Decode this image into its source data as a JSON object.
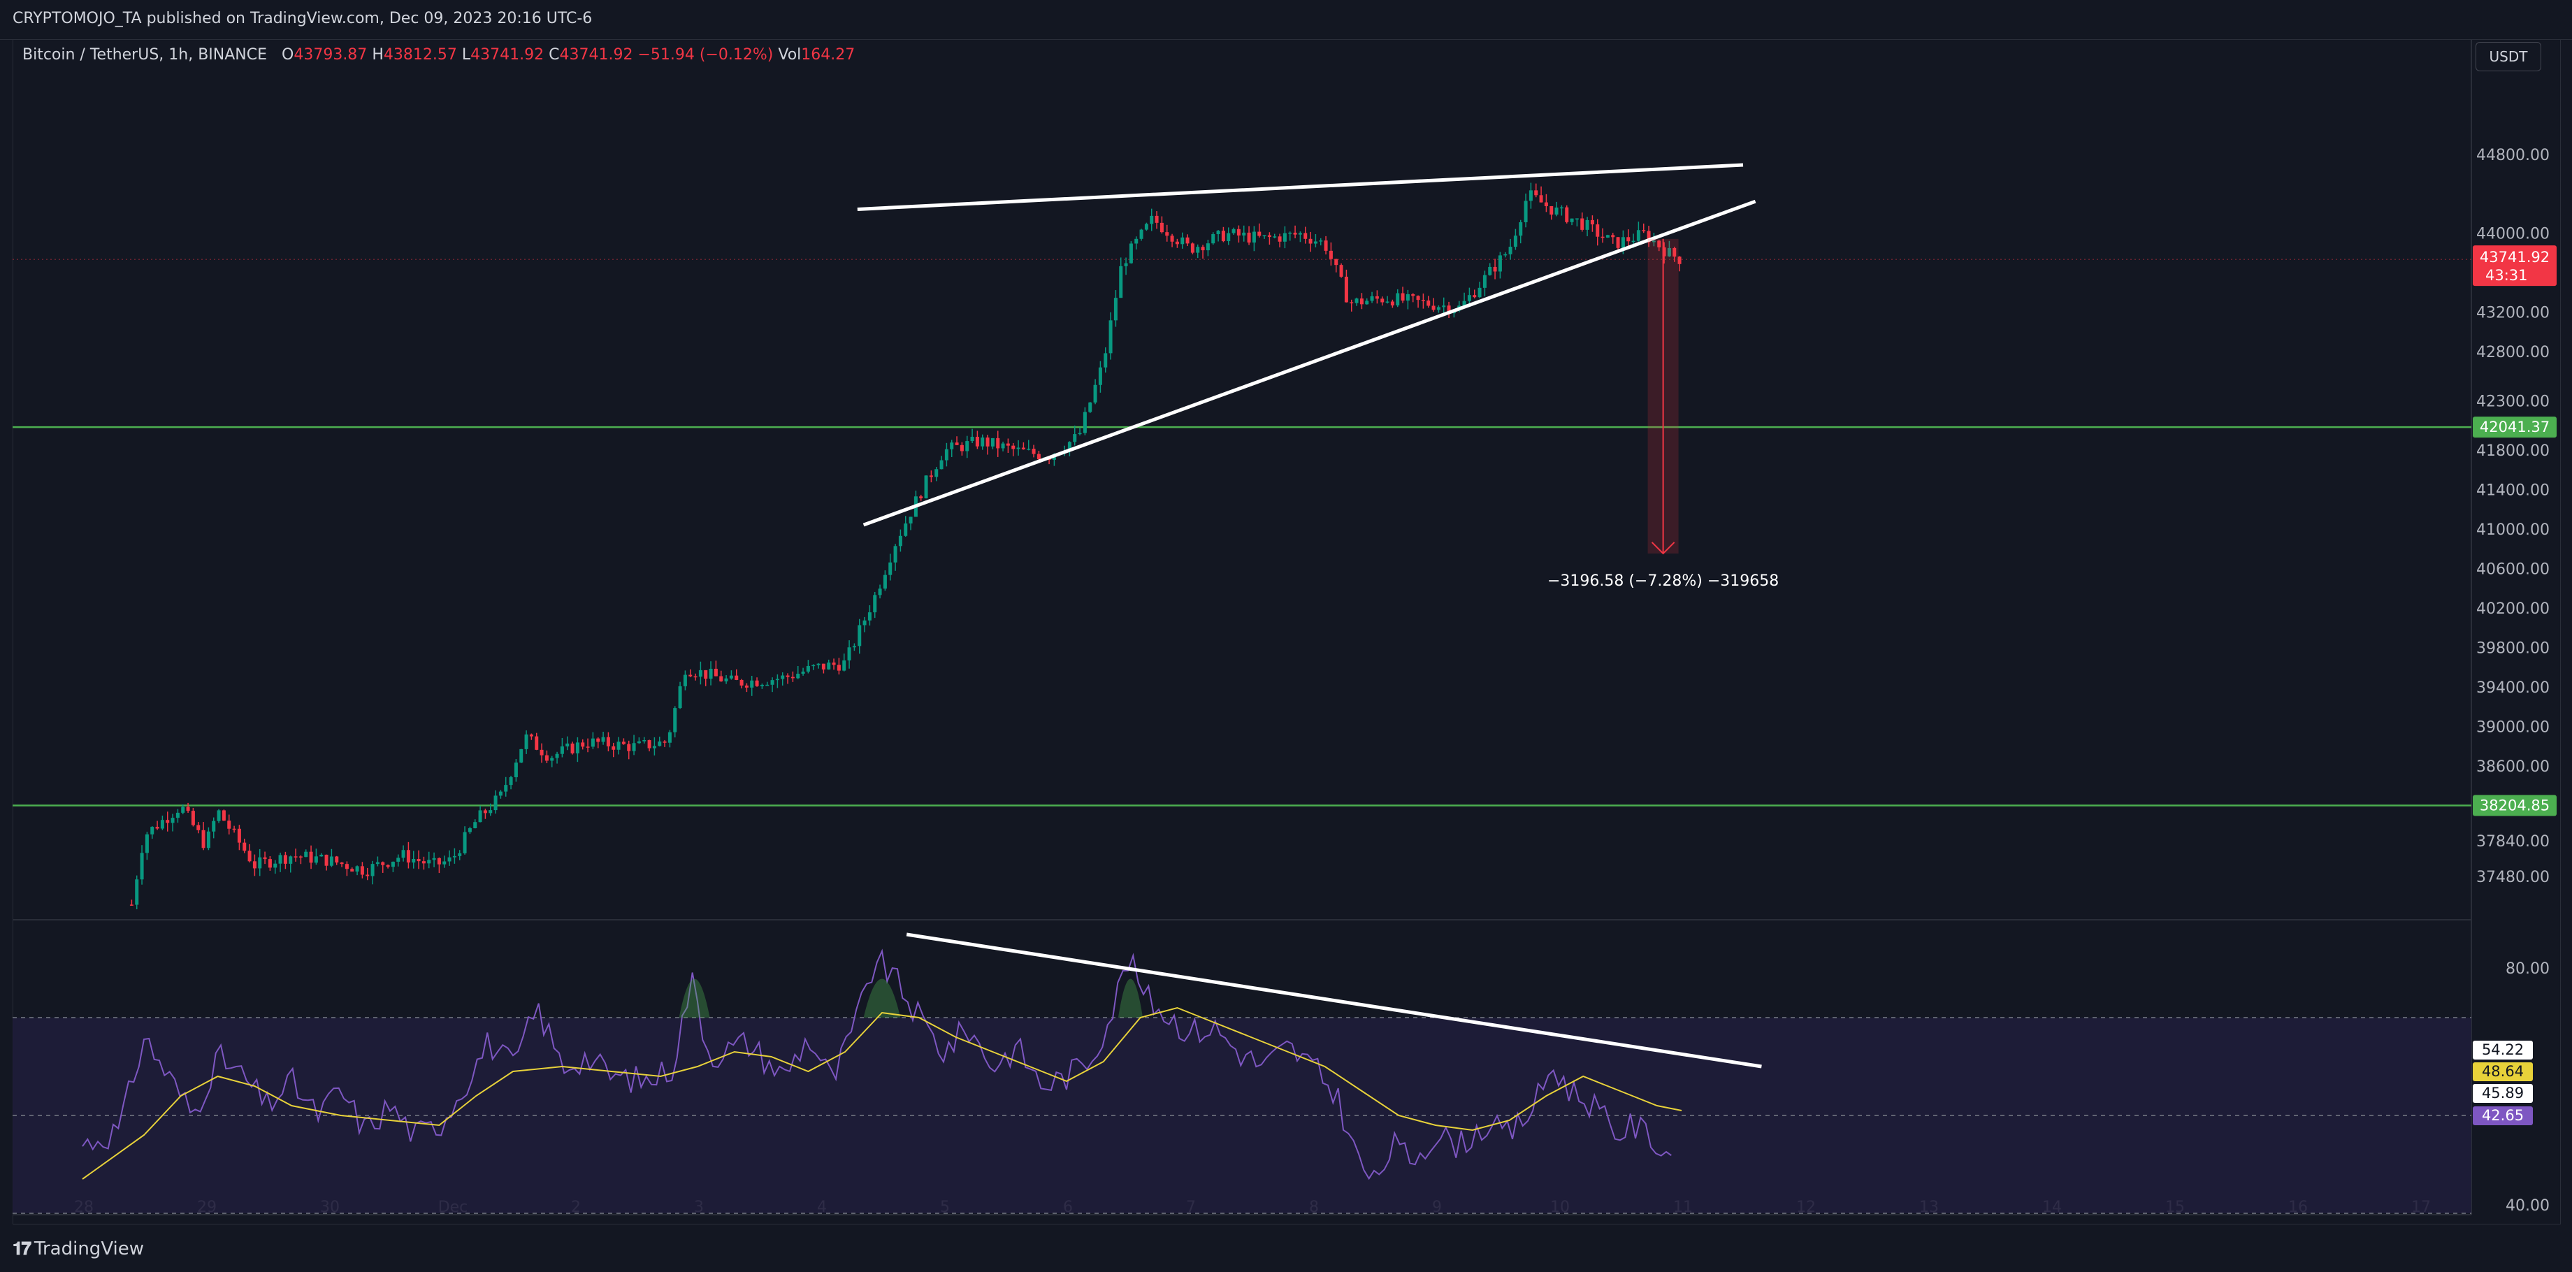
{
  "header": {
    "published": "CRYPTOMOJO_TA published on TradingView.com, Dec 09, 2023 20:16 UTC-6"
  },
  "legend": {
    "symbol": "Bitcoin / TetherUS, 1h, BINANCE",
    "o_label": "O",
    "o": "43793.87",
    "h_label": "H",
    "h": "43812.57",
    "l_label": "L",
    "l": "43741.92",
    "c_label": "C",
    "c": "43741.92",
    "change": "−51.94 (−0.12%)",
    "vol_label": "Vol",
    "vol": "164.27"
  },
  "currency_button": "USDT",
  "footer": {
    "brand": "TradingView"
  },
  "colors": {
    "bg": "#131722",
    "up": "#089981",
    "down": "#f23645",
    "level": "#4caf50",
    "rsi": "#7e57c2",
    "rsi_ma": "#e8d23a",
    "trendline": "#ffffff",
    "rsi_band": "#1f1d3a"
  },
  "chart_data": {
    "type": "candlestick",
    "symbol": "BTCUSDT",
    "interval": "1h",
    "last_price": 43741.92,
    "last_price_label": "43741.92",
    "countdown": "43:31",
    "price_axis": {
      "ylim": [
        37160,
        45380
      ],
      "ticks": [
        44800,
        44000,
        43200,
        42800,
        42300,
        41800,
        41400,
        41000,
        40600,
        40200,
        39800,
        39400,
        39000,
        38600,
        37840,
        37480
      ],
      "tick_labels": [
        "44800.00",
        "44000.00",
        "43200.00",
        "42800.00",
        "42300.00",
        "41800.00",
        "41400.00",
        "41000.00",
        "40600.00",
        "40200.00",
        "39800.00",
        "39400.00",
        "39000.00",
        "38600.00",
        "37840.00",
        "37480.00"
      ]
    },
    "time_axis": {
      "labels": [
        "28",
        "29",
        "30",
        "Dec",
        "2",
        "3",
        "4",
        "5",
        "6",
        "7",
        "8",
        "9",
        "10",
        "11",
        "12",
        "13",
        "14",
        "15",
        "16",
        "17"
      ],
      "start_day": 0,
      "end_day": 19.8
    },
    "ohlc_path_keypoints": [
      {
        "day": 0.4,
        "price": 37200
      },
      {
        "day": 0.5,
        "price": 37900
      },
      {
        "day": 0.8,
        "price": 38200
      },
      {
        "day": 1.0,
        "price": 37800
      },
      {
        "day": 1.1,
        "price": 38150
      },
      {
        "day": 1.4,
        "price": 37600
      },
      {
        "day": 1.7,
        "price": 37700
      },
      {
        "day": 2.0,
        "price": 37650
      },
      {
        "day": 2.3,
        "price": 37550
      },
      {
        "day": 2.6,
        "price": 37700
      },
      {
        "day": 2.85,
        "price": 37600
      },
      {
        "day": 3.0,
        "price": 37650
      },
      {
        "day": 3.2,
        "price": 38050
      },
      {
        "day": 3.4,
        "price": 38300
      },
      {
        "day": 3.6,
        "price": 38900
      },
      {
        "day": 3.8,
        "price": 38700
      },
      {
        "day": 4.1,
        "price": 38850
      },
      {
        "day": 4.5,
        "price": 38800
      },
      {
        "day": 4.75,
        "price": 38850
      },
      {
        "day": 4.9,
        "price": 39600
      },
      {
        "day": 5.3,
        "price": 39450
      },
      {
        "day": 5.7,
        "price": 39500
      },
      {
        "day": 5.95,
        "price": 39600
      },
      {
        "day": 6.2,
        "price": 39650
      },
      {
        "day": 6.45,
        "price": 40350
      },
      {
        "day": 6.6,
        "price": 40850
      },
      {
        "day": 6.8,
        "price": 41350
      },
      {
        "day": 7.0,
        "price": 41800
      },
      {
        "day": 7.3,
        "price": 41900
      },
      {
        "day": 7.6,
        "price": 41800
      },
      {
        "day": 7.85,
        "price": 41750
      },
      {
        "day": 8.1,
        "price": 41950
      },
      {
        "day": 8.3,
        "price": 42700
      },
      {
        "day": 8.45,
        "price": 43700
      },
      {
        "day": 8.7,
        "price": 44150
      },
      {
        "day": 9.0,
        "price": 43850
      },
      {
        "day": 9.3,
        "price": 44000
      },
      {
        "day": 9.6,
        "price": 43950
      },
      {
        "day": 9.9,
        "price": 44000
      },
      {
        "day": 10.1,
        "price": 43900
      },
      {
        "day": 10.3,
        "price": 43300
      },
      {
        "day": 10.6,
        "price": 43350
      },
      {
        "day": 10.9,
        "price": 43300
      },
      {
        "day": 11.2,
        "price": 43250
      },
      {
        "day": 11.4,
        "price": 43550
      },
      {
        "day": 11.6,
        "price": 43850
      },
      {
        "day": 11.75,
        "price": 44400
      },
      {
        "day": 11.95,
        "price": 44250
      },
      {
        "day": 12.2,
        "price": 44100
      },
      {
        "day": 12.45,
        "price": 43900
      },
      {
        "day": 12.7,
        "price": 44000
      },
      {
        "day": 12.9,
        "price": 43800
      },
      {
        "day": 13.0,
        "price": 43740
      }
    ],
    "horizontal_levels": [
      {
        "price": 42041.37,
        "label": "42041.37"
      },
      {
        "price": 38204.85,
        "label": "38204.85"
      }
    ],
    "trendlines": [
      {
        "from": {
          "day": 6.3,
          "price": 44250
        },
        "to": {
          "day": 13.5,
          "price": 44700
        }
      },
      {
        "from": {
          "day": 6.35,
          "price": 41050
        },
        "to": {
          "day": 13.6,
          "price": 44330
        }
      }
    ],
    "projection": {
      "from": {
        "day": 12.85,
        "price": 43950
      },
      "to": {
        "day": 12.85,
        "price": 40760
      },
      "label": "−3196.58 (−7.28%) −319658"
    },
    "rsi": {
      "ylim": [
        30,
        90
      ],
      "tick": 80,
      "tick_label": "80.00",
      "hidden_tick_label": "40.00",
      "upper_band": 70,
      "mid_band": 50,
      "lower_band": 30,
      "labels": [
        {
          "value": 54.22,
          "label": "54.22"
        },
        {
          "value": 48.64,
          "label": "48.64"
        },
        {
          "value": 45.89,
          "label": "45.89"
        },
        {
          "value": 42.65,
          "label": "42.65"
        }
      ],
      "keypoints": [
        {
          "day": 0,
          "value": 44
        },
        {
          "day": 0.3,
          "value": 47
        },
        {
          "day": 0.5,
          "value": 66
        },
        {
          "day": 0.7,
          "value": 58
        },
        {
          "day": 0.9,
          "value": 50
        },
        {
          "day": 1.1,
          "value": 62
        },
        {
          "day": 1.3,
          "value": 58
        },
        {
          "day": 1.5,
          "value": 52
        },
        {
          "day": 1.7,
          "value": 57
        },
        {
          "day": 1.9,
          "value": 50
        },
        {
          "day": 2.1,
          "value": 55
        },
        {
          "day": 2.3,
          "value": 47
        },
        {
          "day": 2.5,
          "value": 52
        },
        {
          "day": 2.7,
          "value": 46
        },
        {
          "day": 2.9,
          "value": 48
        },
        {
          "day": 3.1,
          "value": 56
        },
        {
          "day": 3.3,
          "value": 65
        },
        {
          "day": 3.5,
          "value": 60
        },
        {
          "day": 3.7,
          "value": 72
        },
        {
          "day": 3.9,
          "value": 60
        },
        {
          "day": 4.1,
          "value": 62
        },
        {
          "day": 4.3,
          "value": 58
        },
        {
          "day": 4.6,
          "value": 57
        },
        {
          "day": 4.8,
          "value": 60
        },
        {
          "day": 4.95,
          "value": 78
        },
        {
          "day": 5.1,
          "value": 62
        },
        {
          "day": 5.4,
          "value": 65
        },
        {
          "day": 5.7,
          "value": 58
        },
        {
          "day": 5.9,
          "value": 66
        },
        {
          "day": 6.1,
          "value": 57
        },
        {
          "day": 6.3,
          "value": 70
        },
        {
          "day": 6.45,
          "value": 82
        },
        {
          "day": 6.6,
          "value": 78
        },
        {
          "day": 6.8,
          "value": 70
        },
        {
          "day": 7.0,
          "value": 63
        },
        {
          "day": 7.2,
          "value": 68
        },
        {
          "day": 7.4,
          "value": 60
        },
        {
          "day": 7.6,
          "value": 64
        },
        {
          "day": 7.8,
          "value": 56
        },
        {
          "day": 8.0,
          "value": 58
        },
        {
          "day": 8.2,
          "value": 62
        },
        {
          "day": 8.35,
          "value": 70
        },
        {
          "day": 8.5,
          "value": 82
        },
        {
          "day": 8.65,
          "value": 74
        },
        {
          "day": 8.85,
          "value": 70
        },
        {
          "day": 9.0,
          "value": 67
        },
        {
          "day": 9.2,
          "value": 68
        },
        {
          "day": 9.4,
          "value": 63
        },
        {
          "day": 9.6,
          "value": 60
        },
        {
          "day": 9.8,
          "value": 64
        },
        {
          "day": 10.0,
          "value": 60
        },
        {
          "day": 10.2,
          "value": 54
        },
        {
          "day": 10.35,
          "value": 42
        },
        {
          "day": 10.5,
          "value": 36
        },
        {
          "day": 10.65,
          "value": 44
        },
        {
          "day": 10.8,
          "value": 41
        },
        {
          "day": 11.0,
          "value": 46
        },
        {
          "day": 11.2,
          "value": 44
        },
        {
          "day": 11.4,
          "value": 48
        },
        {
          "day": 11.6,
          "value": 46
        },
        {
          "day": 11.8,
          "value": 52
        },
        {
          "day": 11.95,
          "value": 60
        },
        {
          "day": 12.1,
          "value": 55
        },
        {
          "day": 12.3,
          "value": 52
        },
        {
          "day": 12.45,
          "value": 46
        },
        {
          "day": 12.6,
          "value": 48
        },
        {
          "day": 12.75,
          "value": 46
        },
        {
          "day": 12.85,
          "value": 42
        },
        {
          "day": 12.95,
          "value": 43
        }
      ],
      "ma_keypoints": [
        {
          "day": 0,
          "value": 37
        },
        {
          "day": 0.5,
          "value": 46
        },
        {
          "day": 0.8,
          "value": 54
        },
        {
          "day": 1.1,
          "value": 58
        },
        {
          "day": 1.4,
          "value": 56
        },
        {
          "day": 1.7,
          "value": 52
        },
        {
          "day": 2.1,
          "value": 50
        },
        {
          "day": 2.5,
          "value": 49
        },
        {
          "day": 2.9,
          "value": 48
        },
        {
          "day": 3.2,
          "value": 54
        },
        {
          "day": 3.5,
          "value": 59
        },
        {
          "day": 3.9,
          "value": 60
        },
        {
          "day": 4.3,
          "value": 59
        },
        {
          "day": 4.7,
          "value": 58
        },
        {
          "day": 5.0,
          "value": 60
        },
        {
          "day": 5.3,
          "value": 63
        },
        {
          "day": 5.6,
          "value": 62
        },
        {
          "day": 5.9,
          "value": 59
        },
        {
          "day": 6.2,
          "value": 63
        },
        {
          "day": 6.5,
          "value": 71
        },
        {
          "day": 6.8,
          "value": 70
        },
        {
          "day": 7.1,
          "value": 66
        },
        {
          "day": 7.4,
          "value": 63
        },
        {
          "day": 7.7,
          "value": 60
        },
        {
          "day": 8.0,
          "value": 57
        },
        {
          "day": 8.3,
          "value": 61
        },
        {
          "day": 8.6,
          "value": 70
        },
        {
          "day": 8.9,
          "value": 72
        },
        {
          "day": 9.2,
          "value": 69
        },
        {
          "day": 9.5,
          "value": 66
        },
        {
          "day": 9.8,
          "value": 63
        },
        {
          "day": 10.1,
          "value": 60
        },
        {
          "day": 10.4,
          "value": 55
        },
        {
          "day": 10.7,
          "value": 50
        },
        {
          "day": 11.0,
          "value": 48
        },
        {
          "day": 11.3,
          "value": 47
        },
        {
          "day": 11.6,
          "value": 49
        },
        {
          "day": 11.9,
          "value": 54
        },
        {
          "day": 12.2,
          "value": 58
        },
        {
          "day": 12.5,
          "value": 55
        },
        {
          "day": 12.8,
          "value": 52
        },
        {
          "day": 13.0,
          "value": 51
        }
      ],
      "trendline": {
        "from": {
          "day": 6.7,
          "value": 87
        },
        "to": {
          "day": 13.65,
          "value": 60
        }
      }
    }
  }
}
